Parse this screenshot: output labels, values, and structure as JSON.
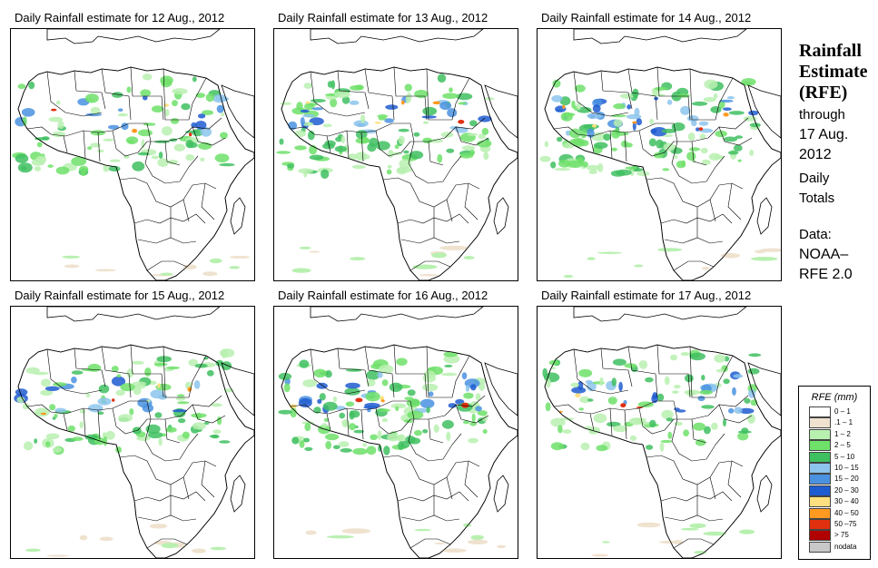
{
  "panels": [
    {
      "title": "Daily Rainfall estimate for  12 Aug., 2012",
      "rain_intensity": 0.6
    },
    {
      "title": "Daily Rainfall estimate for  13 Aug., 2012",
      "rain_intensity": 0.75
    },
    {
      "title": "Daily Rainfall estimate for  14 Aug., 2012",
      "rain_intensity": 0.85
    },
    {
      "title": "Daily Rainfall estimate for  15 Aug., 2012",
      "rain_intensity": 0.7
    },
    {
      "title": "Daily Rainfall estimate for  16 Aug., 2012",
      "rain_intensity": 0.8
    },
    {
      "title": "Daily Rainfall estimate for  17 Aug., 2012",
      "rain_intensity": 0.65
    }
  ],
  "sidebar": {
    "title_line1": "Rainfall",
    "title_line2": "Estimate",
    "title_line3": "(RFE)",
    "through_label": "through",
    "through_date_line1": "17 Aug.",
    "through_date_line2": "2012",
    "totals_line1": "Daily",
    "totals_line2": "Totals",
    "source_line1": "Data:",
    "source_line2": "NOAA–",
    "source_line3": "RFE 2.0"
  },
  "legend": {
    "title": "RFE (mm)",
    "items": [
      {
        "label": "0 – 1",
        "color": "#ffffff"
      },
      {
        "label": ".1 – 1",
        "color": "#efe2cf"
      },
      {
        "label": "1 – 2",
        "color": "#b8f0b0"
      },
      {
        "label": "2 – 5",
        "color": "#6fe06a"
      },
      {
        "label": "5 – 10",
        "color": "#3fc060"
      },
      {
        "label": "10 – 15",
        "color": "#8cc4ec"
      },
      {
        "label": "15 – 20",
        "color": "#4a92e0"
      },
      {
        "label": "20 – 30",
        "color": "#1e5cd0"
      },
      {
        "label": "30 – 40",
        "color": "#ffe080"
      },
      {
        "label": "40 – 50",
        "color": "#ff9a20"
      },
      {
        "label": "50 –75",
        "color": "#e03010"
      },
      {
        "label": "> 75",
        "color": "#b00000"
      },
      {
        "label": "nodata",
        "color": "#c8c8c8"
      }
    ]
  }
}
